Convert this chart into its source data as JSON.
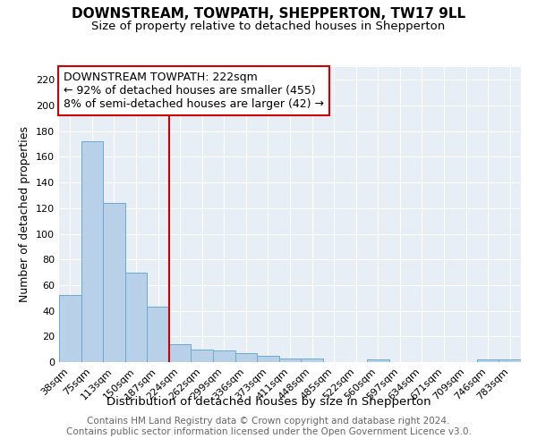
{
  "title": "DOWNSTREAM, TOWPATH, SHEPPERTON, TW17 9LL",
  "subtitle": "Size of property relative to detached houses in Shepperton",
  "xlabel": "Distribution of detached houses by size in Shepperton",
  "ylabel": "Number of detached properties",
  "footer_line1": "Contains HM Land Registry data © Crown copyright and database right 2024.",
  "footer_line2": "Contains public sector information licensed under the Open Government Licence v3.0.",
  "categories": [
    "38sqm",
    "75sqm",
    "113sqm",
    "150sqm",
    "187sqm",
    "224sqm",
    "262sqm",
    "299sqm",
    "336sqm",
    "373sqm",
    "411sqm",
    "448sqm",
    "485sqm",
    "522sqm",
    "560sqm",
    "597sqm",
    "634sqm",
    "671sqm",
    "709sqm",
    "746sqm",
    "783sqm"
  ],
  "values": [
    52,
    172,
    124,
    70,
    43,
    14,
    10,
    9,
    7,
    5,
    3,
    3,
    0,
    0,
    2,
    0,
    0,
    0,
    0,
    2,
    2
  ],
  "bar_color": "#b8d0e8",
  "bar_edge_color": "#6aaad4",
  "reference_line_color": "#cc0000",
  "reference_line_x": 4.5,
  "annotation_line1": "DOWNSTREAM TOWPATH: 222sqm",
  "annotation_line2": "← 92% of detached houses are smaller (455)",
  "annotation_line3": "8% of semi-detached houses are larger (42) →",
  "annotation_box_edgecolor": "#cc0000",
  "ylim_max": 230,
  "yticks": [
    0,
    20,
    40,
    60,
    80,
    100,
    120,
    140,
    160,
    180,
    200,
    220
  ],
  "bg_color": "#e8eef5",
  "grid_color": "#ffffff",
  "title_fontsize": 11,
  "subtitle_fontsize": 9.5,
  "ylabel_fontsize": 9,
  "xlabel_fontsize": 9.5,
  "tick_fontsize": 8,
  "annotation_fontsize": 9,
  "footer_fontsize": 7.5
}
